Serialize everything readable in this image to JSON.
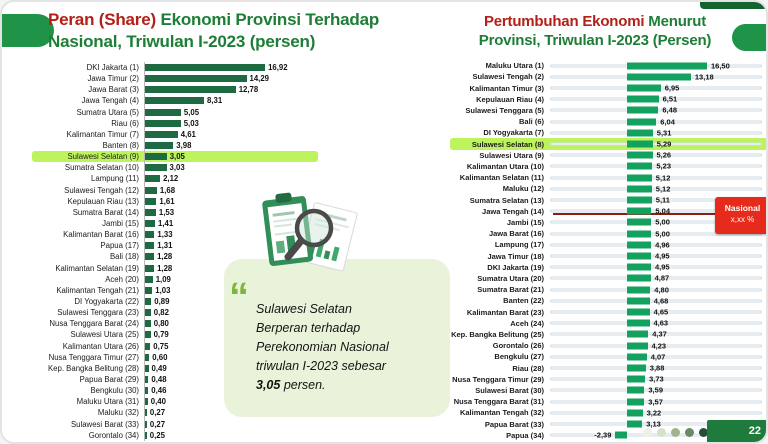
{
  "page": {
    "number": "22"
  },
  "titles": {
    "left_accent": "Peran (Share) ",
    "left_rest": "Ekonomi Provinsi Terhadap Nasional, Triwulan I-2023 (persen)",
    "right_accent": "Pertumbuhan Ekonomi ",
    "right_rest": "Menurut Provinsi, Triwulan I-2023 (Persen)"
  },
  "callout": {
    "quote_glyph": "“",
    "lines": [
      "Sulawesi Selatan",
      "Berperan terhadap",
      "Perekonomian Nasional",
      "triwulan I-2023 sebesar"
    ],
    "bold_value": "3,05",
    "suffix": " persen."
  },
  "national_marker": {
    "line1": "Nasional",
    "line2": "x,xx %"
  },
  "colors": {
    "accent_red": "#b32017",
    "title_green": "#1e7d36",
    "bar_dark_green": "#1e6b43",
    "bar_emerald": "#12a15e",
    "highlight": "#bdf35c",
    "callout_bg": "#e9f3d9",
    "marker_red": "#e62a1c",
    "page_tab_green": "#1e7b3c",
    "decor_dots": [
      "#edf2e8",
      "#d4e2c6",
      "#9db48d",
      "#6b8a63",
      "#224f33"
    ]
  },
  "chart_data": [
    {
      "type": "bar",
      "orientation": "horizontal",
      "title": "Peran (Share) Ekonomi Provinsi Terhadap Nasional, Triwulan I-2023 (persen)",
      "xlim": [
        0,
        18
      ],
      "highlight_category": "Sulawesi Selatan (9)",
      "categories": [
        "DKI Jakarta (1)",
        "Jawa Timur (2)",
        "Jawa Barat (3)",
        "Jawa Tengah (4)",
        "Sumatra Utara (5)",
        "Riau (6)",
        "Kalimantan Timur (7)",
        "Banten (8)",
        "Sulawesi Selatan (9)",
        "Sumatra Selatan (10)",
        "Lampung (11)",
        "Sulawesi Tengah (12)",
        "Kepulauan Riau (13)",
        "Sumatra Barat (14)",
        "Jambi (15)",
        "Kalimantan Barat (16)",
        "Papua (17)",
        "Bali (18)",
        "Kalimantan Selatan (19)",
        "Aceh (20)",
        "Kalimantan Tengah (21)",
        "DI Yogyakarta (22)",
        "Sulawesi Tenggara (23)",
        "Nusa Tenggara Barat (24)",
        "Sulawesi Utara (25)",
        "Kalimantan Utara (26)",
        "Nusa Tenggara Timur (27)",
        "Kep. Bangka Belitung (28)",
        "Papua Barat (29)",
        "Bengkulu (30)",
        "Maluku Utara (31)",
        "Maluku (32)",
        "Sulawesi Barat (33)",
        "Gorontalo (34)"
      ],
      "values": [
        16.92,
        14.29,
        12.78,
        8.31,
        5.05,
        5.03,
        4.61,
        3.98,
        3.05,
        3.03,
        2.12,
        1.68,
        1.61,
        1.53,
        1.41,
        1.33,
        1.31,
        1.28,
        1.28,
        1.09,
        1.03,
        0.89,
        0.82,
        0.8,
        0.79,
        0.75,
        0.6,
        0.49,
        0.48,
        0.46,
        0.4,
        0.27,
        0.27,
        0.25
      ]
    },
    {
      "type": "bar",
      "orientation": "horizontal",
      "title": "Pertumbuhan Ekonomi Menurut Provinsi, Triwulan I-2023 (Persen)",
      "xlim": [
        -3,
        18
      ],
      "highlight_category": "Sulawesi Selatan (8)",
      "annotation": "Nasional x,xx %",
      "categories": [
        "Maluku Utara (1)",
        "Sulawesi Tengah (2)",
        "Kalimantan Timur (3)",
        "Kepulauan Riau (4)",
        "Sulawesi Tenggara (5)",
        "Bali (6)",
        "DI Yogyakarta (7)",
        "Sulawesi Selatan (8)",
        "Sulawesi Utara (9)",
        "Kalimantan Utara (10)",
        "Kalimantan Selatan (11)",
        "Maluku (12)",
        "Sumatra Selatan (13)",
        "Jawa Tengah (14)",
        "Jambi (15)",
        "Jawa Barat (16)",
        "Lampung (17)",
        "Jawa Timur (18)",
        "DKI Jakarta (19)",
        "Sumatra Utara (20)",
        "Sumatra Barat (21)",
        "Banten (22)",
        "Kalimantan Barat (23)",
        "Aceh (24)",
        "Kep. Bangka Belitung (25)",
        "Gorontalo (26)",
        "Bengkulu (27)",
        "Riau (28)",
        "Nusa Tenggara Timur (29)",
        "Sulawesi Barat (30)",
        "Nusa Tenggara Barat (31)",
        "Kalimantan Tengah (32)",
        "Papua Barat (33)",
        "Papua (34)"
      ],
      "values": [
        16.5,
        13.18,
        6.95,
        6.51,
        6.48,
        6.04,
        5.31,
        5.29,
        5.26,
        5.23,
        5.12,
        5.12,
        5.11,
        5.04,
        5.0,
        5.0,
        4.96,
        4.95,
        4.95,
        4.87,
        4.8,
        4.68,
        4.65,
        4.63,
        4.37,
        4.23,
        4.07,
        3.88,
        3.73,
        3.59,
        3.57,
        3.22,
        3.13,
        -2.39
      ]
    }
  ]
}
